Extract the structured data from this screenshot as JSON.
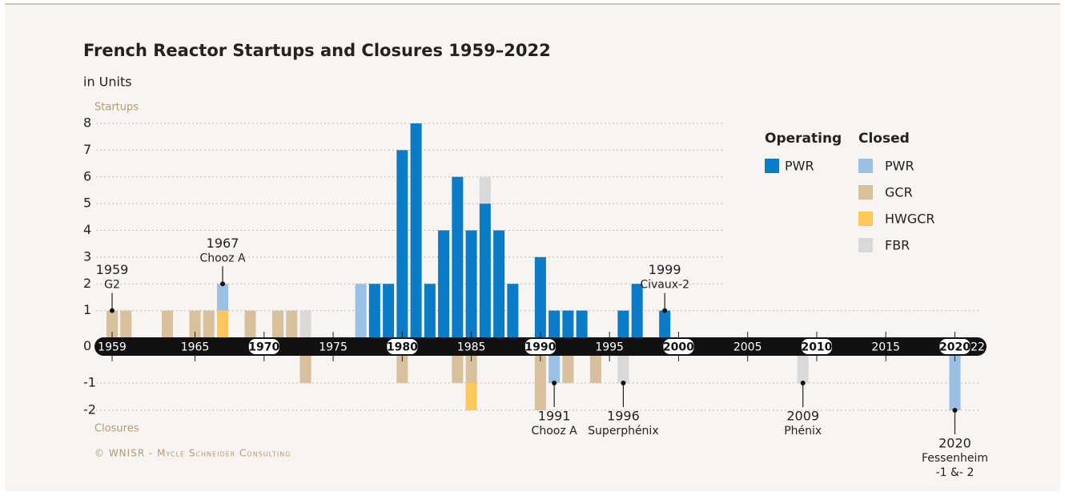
{
  "chart_data": {
    "type": "bar",
    "title": "French Reactor Startups and Closures 1959–2022",
    "subtitle": "in Units",
    "y_label_top": "Startups",
    "y_label_bottom": "Closures",
    "credit": "© WNISR - Mycle Schneider Consulting",
    "legend_groups": [
      "Operating",
      "Closed"
    ],
    "xlim": [
      1958.5,
      2022.5
    ],
    "xticks": [
      1959,
      1965,
      1970,
      1975,
      1980,
      1985,
      1990,
      1995,
      2000,
      2005,
      2010,
      2015,
      2020,
      {
        "value": 2022,
        "label": "22"
      }
    ],
    "ylim": [
      -2,
      8
    ],
    "yticks": [
      -2,
      -1,
      0,
      1,
      2,
      3,
      4,
      5,
      6,
      7,
      8
    ],
    "grid": true,
    "series": [
      {
        "name": "PWR",
        "group": "Operating",
        "color": "#0a7bc6",
        "x": [
          1978,
          1979,
          1980,
          1981,
          1982,
          1983,
          1984,
          1985,
          1986,
          1987,
          1988,
          1990,
          1991,
          1992,
          1993,
          1996,
          1997,
          1999
        ],
        "values": [
          2,
          2,
          7,
          8,
          2,
          4,
          6,
          4,
          5,
          4,
          2,
          3,
          1,
          1,
          1,
          1,
          2,
          1
        ]
      },
      {
        "name": "GCR",
        "group": "Closed",
        "color": "#d8c09c",
        "x": [
          1959,
          1960,
          1963,
          1965,
          1966,
          1969,
          1971,
          1972,
          1973,
          1980,
          1984,
          1985,
          1990,
          1992,
          1994
        ],
        "values": [
          1,
          1,
          1,
          1,
          1,
          1,
          1,
          1,
          -1,
          -1,
          -1,
          -1,
          -2,
          -1,
          -1
        ]
      },
      {
        "name": "HWGCR",
        "group": "Closed",
        "color": "#fcc85a",
        "x": [
          1967,
          1985
        ],
        "values": [
          1,
          -1
        ]
      },
      {
        "name": "PWR",
        "group": "Closed",
        "color": "#9bc0e6",
        "x": [
          1967,
          1977,
          1991,
          2020
        ],
        "values": [
          1,
          2,
          -1,
          -2
        ]
      },
      {
        "name": "FBR",
        "group": "Closed",
        "color": "#d9d9d9",
        "x": [
          1973,
          1986,
          1996,
          2009
        ],
        "values": [
          1,
          1,
          -1,
          -1
        ]
      }
    ],
    "annotations": [
      {
        "x": 1959,
        "y": 1,
        "text": [
          "1959",
          "G2"
        ]
      },
      {
        "x": 1967,
        "y": 2,
        "text": [
          "1967",
          "Chooz A"
        ]
      },
      {
        "x": 1999,
        "y": 1,
        "text": [
          "1999",
          "Civaux-2"
        ]
      },
      {
        "x": 1991,
        "y": -1,
        "text": [
          "1991",
          "Chooz A"
        ]
      },
      {
        "x": 1996,
        "y": -1,
        "text": [
          "1996",
          "Superphénix"
        ]
      },
      {
        "x": 2009,
        "y": -1,
        "text": [
          "2009",
          "Phénix"
        ]
      },
      {
        "x": 2020,
        "y": -2,
        "text": [
          "2020",
          "Fessenheim",
          "-1 &- 2"
        ]
      }
    ]
  }
}
